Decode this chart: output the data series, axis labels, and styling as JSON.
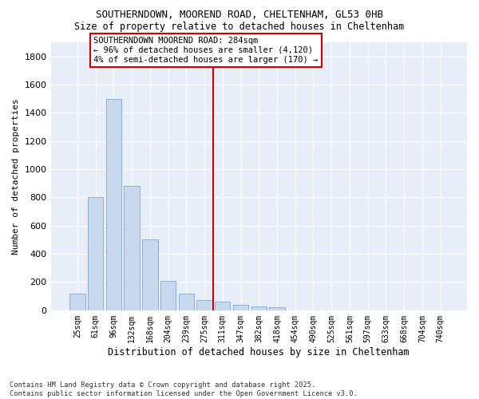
{
  "title1": "SOUTHERNDOWN, MOOREND ROAD, CHELTENHAM, GL53 0HB",
  "title2": "Size of property relative to detached houses in Cheltenham",
  "xlabel": "Distribution of detached houses by size in Cheltenham",
  "ylabel": "Number of detached properties",
  "bar_color": "#c8d9ee",
  "bar_edge_color": "#8ab0d0",
  "figure_bg": "#ffffff",
  "axes_bg": "#e8eef8",
  "grid_color": "#ffffff",
  "vline_color": "#cc0000",
  "annotation_text": "SOUTHERNDOWN MOOREND ROAD: 284sqm\n← 96% of detached houses are smaller (4,120)\n4% of semi-detached houses are larger (170) →",
  "annotation_box_facecolor": "#ffffff",
  "annotation_box_edgecolor": "#cc0000",
  "categories": [
    "25sqm",
    "61sqm",
    "96sqm",
    "132sqm",
    "168sqm",
    "204sqm",
    "239sqm",
    "275sqm",
    "311sqm",
    "347sqm",
    "382sqm",
    "418sqm",
    "454sqm",
    "490sqm",
    "525sqm",
    "561sqm",
    "597sqm",
    "633sqm",
    "668sqm",
    "704sqm",
    "740sqm"
  ],
  "values": [
    120,
    800,
    1500,
    880,
    500,
    210,
    115,
    70,
    60,
    40,
    25,
    20,
    0,
    0,
    0,
    0,
    0,
    0,
    0,
    0,
    0
  ],
  "ylim": [
    0,
    1900
  ],
  "yticks": [
    0,
    200,
    400,
    600,
    800,
    1000,
    1200,
    1400,
    1600,
    1800
  ],
  "vline_index": 7.5,
  "footnote": "Contains HM Land Registry data © Crown copyright and database right 2025.\nContains public sector information licensed under the Open Government Licence v3.0."
}
